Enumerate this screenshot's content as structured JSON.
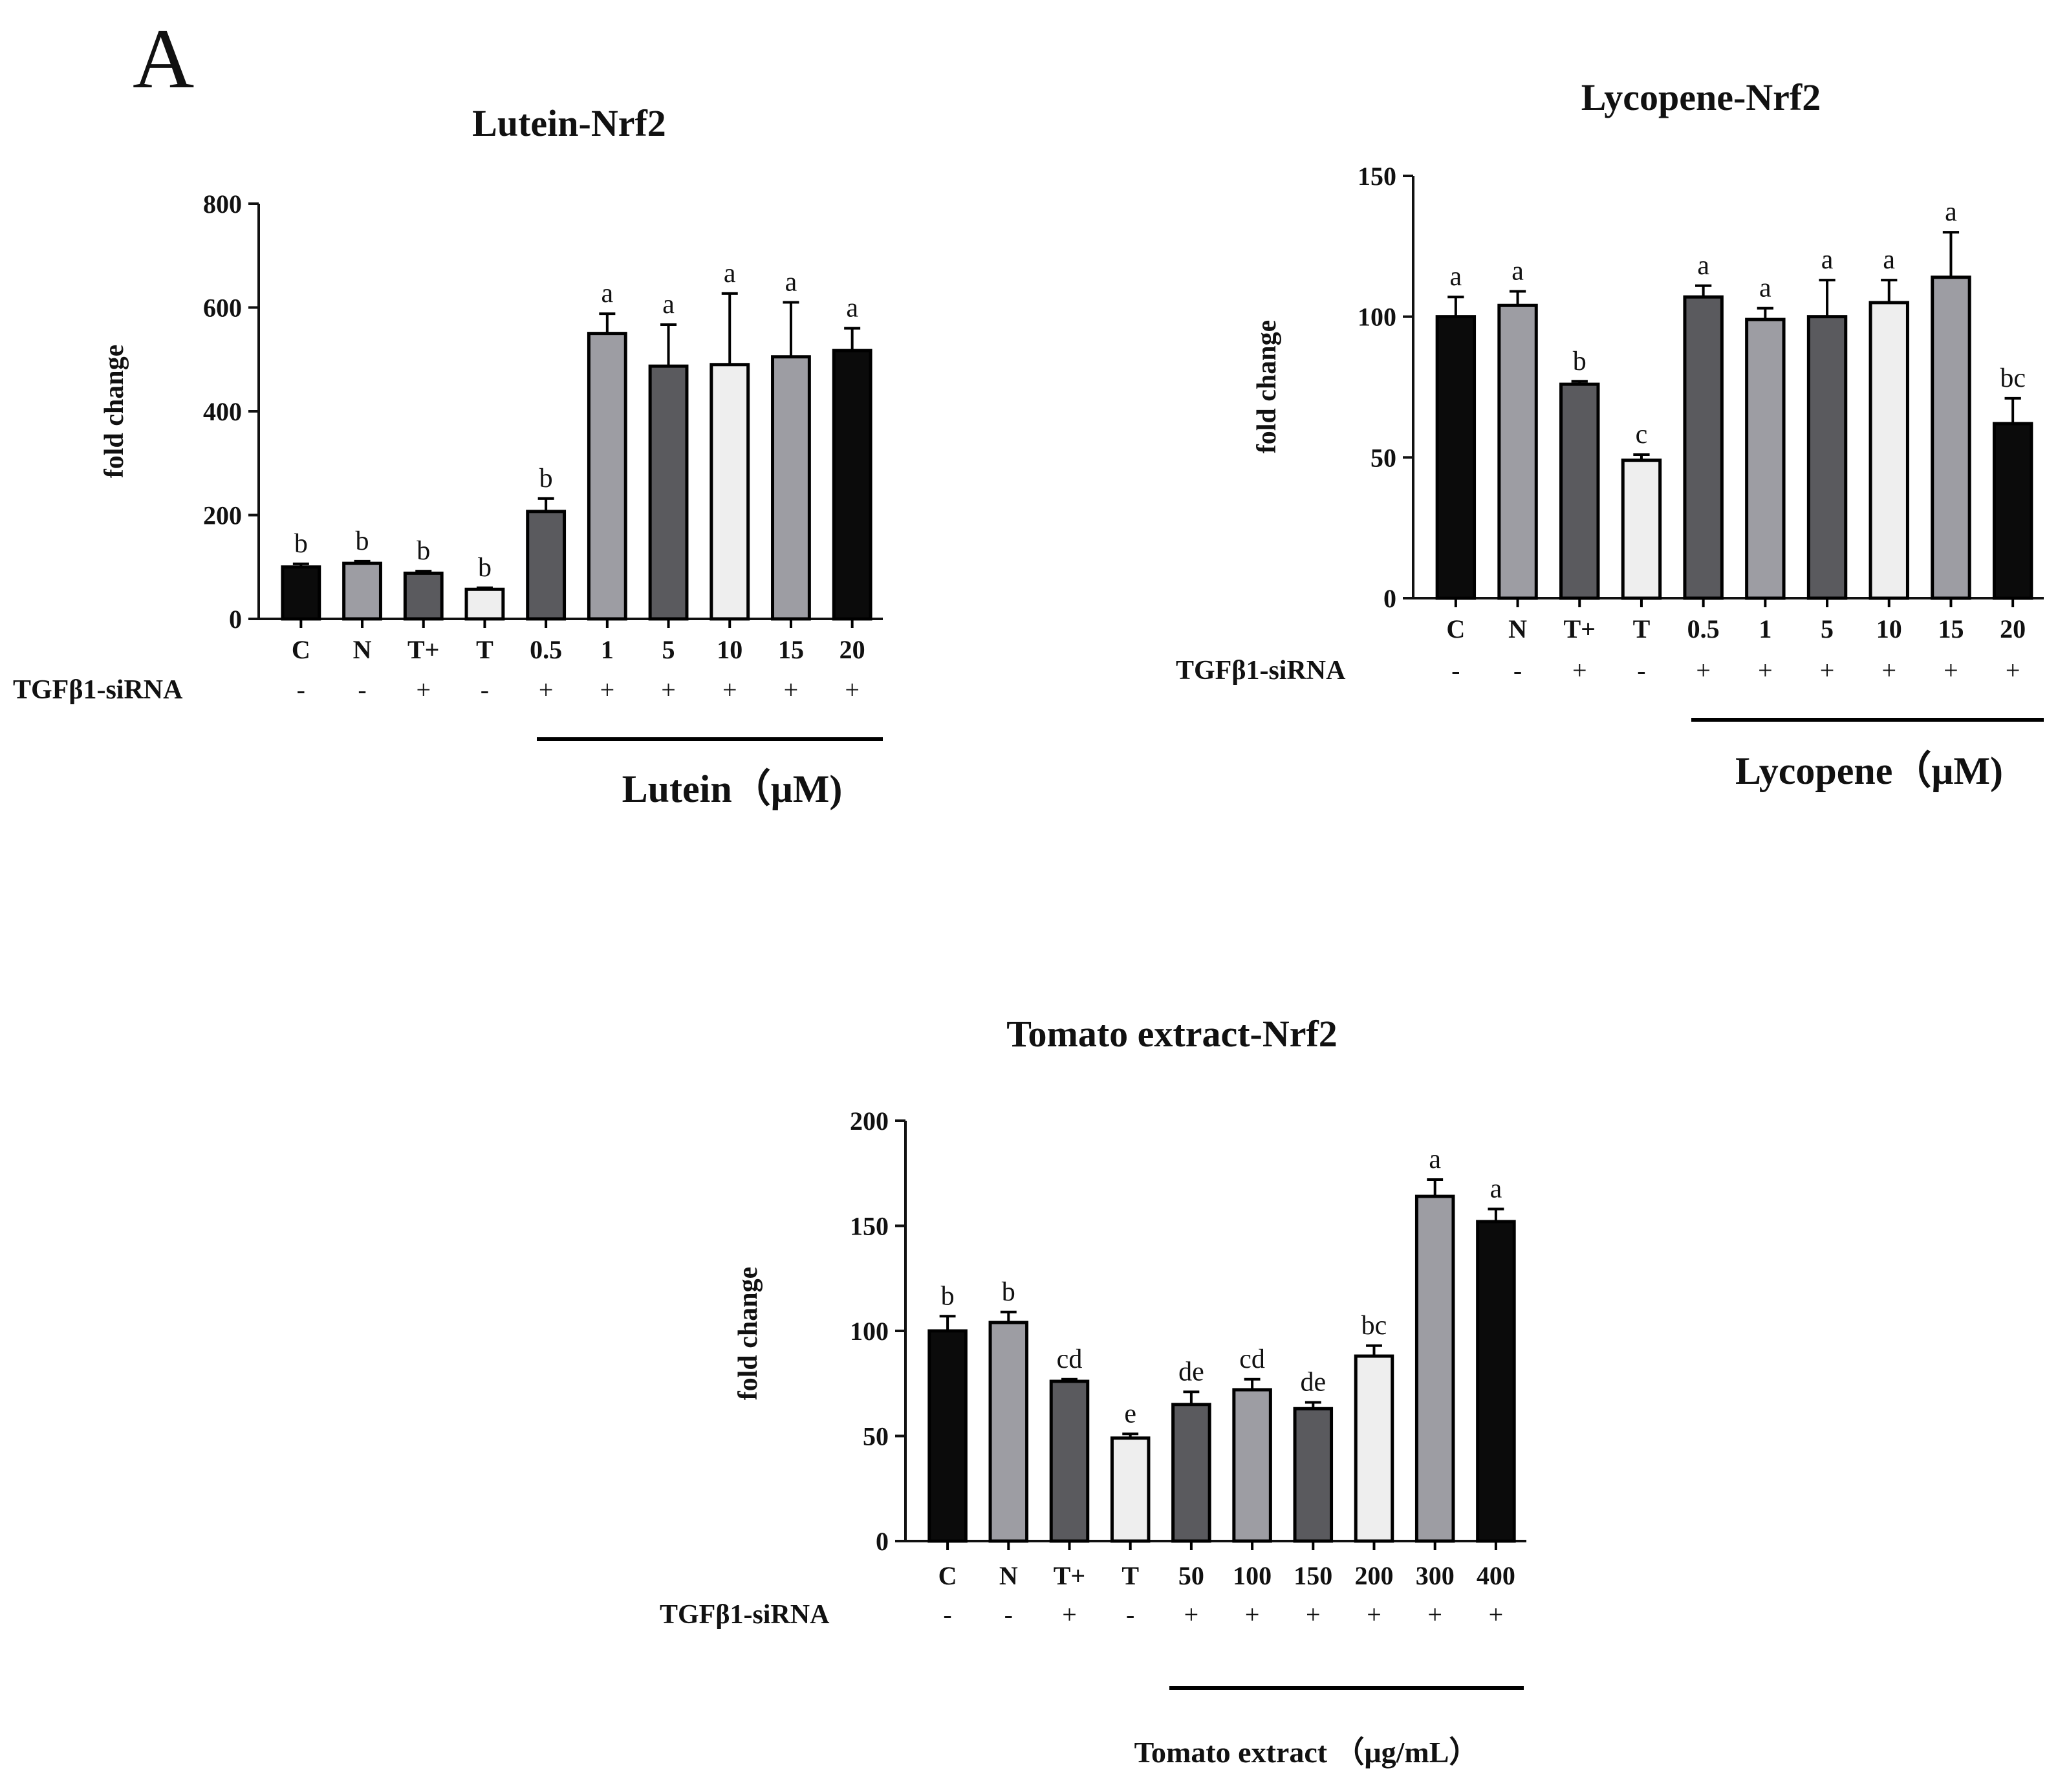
{
  "panel_label": "A",
  "colors": {
    "black": "#0b0b0b",
    "gray_light": "#9d9da3",
    "gray_dark": "#5a5a5e",
    "white_bar": "#eeeeee",
    "axis": "#111111"
  },
  "chart_data": [
    {
      "type": "bar",
      "title": "Lutein-Nrf2",
      "ylabel": "fold change",
      "ylim": [
        0,
        800
      ],
      "yticks": [
        0,
        200,
        400,
        600,
        800
      ],
      "categories": [
        "C",
        "N",
        "T+",
        "T",
        "0.5",
        "1",
        "5",
        "10",
        "15",
        "20"
      ],
      "values": [
        100,
        107,
        88,
        57,
        207,
        550,
        487,
        490,
        505,
        517
      ],
      "errors": [
        6,
        4,
        4,
        3,
        25,
        38,
        80,
        137,
        105,
        43
      ],
      "significance": [
        "b",
        "b",
        "b",
        "b",
        "b",
        "a",
        "a",
        "a",
        "a",
        "a"
      ],
      "bar_colors": [
        "black",
        "gray_light",
        "gray_dark",
        "white_bar",
        "gray_dark",
        "gray_light",
        "gray_dark",
        "white_bar",
        "gray_light",
        "black"
      ],
      "sirna_label": "TGFβ1-siRNA",
      "sirna_signs": [
        "-",
        "-",
        "+",
        "-",
        "+",
        "+",
        "+",
        "+",
        "+",
        "+"
      ],
      "treatment_label": "Lutein（μM)"
    },
    {
      "type": "bar",
      "title": "Lycopene-Nrf2",
      "ylabel": "fold change",
      "ylim": [
        0,
        150
      ],
      "yticks": [
        0,
        50,
        100,
        150
      ],
      "categories": [
        "C",
        "N",
        "T+",
        "T",
        "0.5",
        "1",
        "5",
        "10",
        "15",
        "20"
      ],
      "values": [
        100,
        104,
        76,
        49,
        107,
        99,
        100,
        105,
        114,
        62
      ],
      "errors": [
        7,
        5,
        1,
        2,
        4,
        4,
        13,
        8,
        16,
        9
      ],
      "significance": [
        "a",
        "a",
        "b",
        "c",
        "a",
        "a",
        "a",
        "a",
        "a",
        "bc"
      ],
      "bar_colors": [
        "black",
        "gray_light",
        "gray_dark",
        "white_bar",
        "gray_dark",
        "gray_light",
        "gray_dark",
        "white_bar",
        "gray_light",
        "black"
      ],
      "sirna_label": "TGFβ1-siRNA",
      "sirna_signs": [
        "-",
        "-",
        "+",
        "-",
        "+",
        "+",
        "+",
        "+",
        "+",
        "+"
      ],
      "treatment_label": "Lycopene（μM)"
    },
    {
      "type": "bar",
      "title": "Tomato extract-Nrf2",
      "ylabel": "fold change",
      "ylim": [
        0,
        200
      ],
      "yticks": [
        0,
        50,
        100,
        150,
        200
      ],
      "categories": [
        "C",
        "N",
        "T+",
        "T",
        "50",
        "100",
        "150",
        "200",
        "300",
        "400"
      ],
      "values": [
        100,
        104,
        76,
        49,
        65,
        72,
        63,
        88,
        164,
        152
      ],
      "errors": [
        7,
        5,
        1,
        2,
        6,
        5,
        3,
        5,
        8,
        6
      ],
      "significance": [
        "b",
        "b",
        "cd",
        "e",
        "de",
        "cd",
        "de",
        "bc",
        "a",
        "a"
      ],
      "bar_colors": [
        "black",
        "gray_light",
        "gray_dark",
        "white_bar",
        "gray_dark",
        "gray_light",
        "gray_dark",
        "white_bar",
        "gray_light",
        "black"
      ],
      "sirna_label": "TGFβ1-siRNA",
      "sirna_signs": [
        "-",
        "-",
        "+",
        "-",
        "+",
        "+",
        "+",
        "+",
        "+",
        "+"
      ],
      "treatment_label": "Tomato extract （μg/mL）"
    }
  ]
}
